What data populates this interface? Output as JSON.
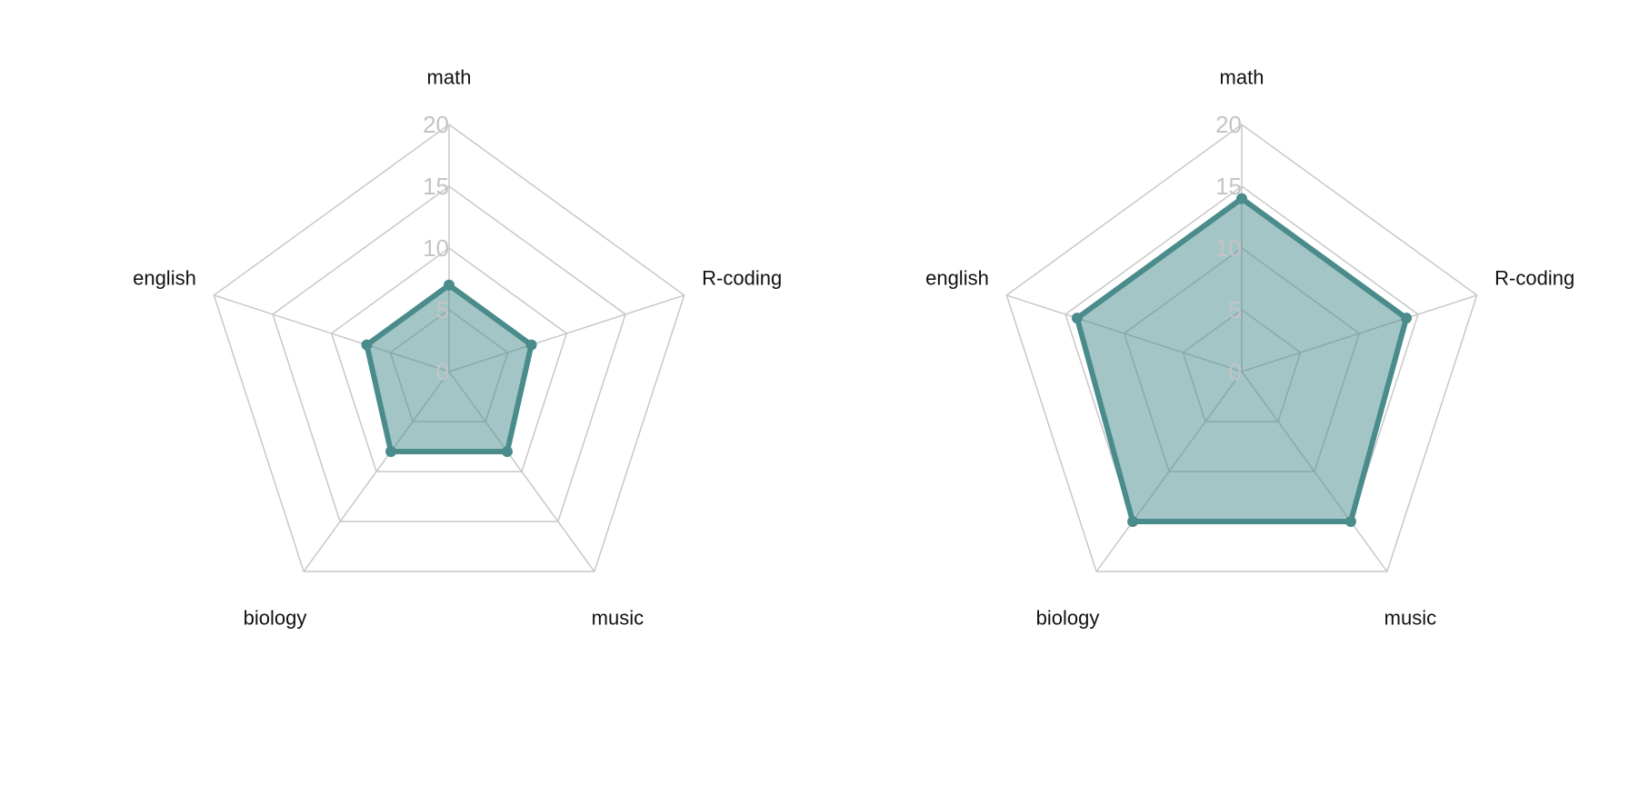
{
  "chart_data": [
    {
      "type": "radar",
      "axes": [
        "math",
        "R-coding",
        "music",
        "biology",
        "english"
      ],
      "rlim": [
        0,
        20
      ],
      "rticks": [
        0,
        5,
        10,
        15,
        20
      ],
      "series": [
        {
          "values": [
            7,
            7,
            8,
            8,
            7
          ]
        }
      ],
      "colors": {
        "line": "#4a8b8b",
        "fill": "#4a8b8b",
        "grid": "#c8c8c8",
        "tick": "#c4c4c4"
      }
    },
    {
      "type": "radar",
      "axes": [
        "math",
        "R-coding",
        "music",
        "biology",
        "english"
      ],
      "rlim": [
        0,
        20
      ],
      "rticks": [
        0,
        5,
        10,
        15,
        20
      ],
      "series": [
        {
          "values": [
            14,
            14,
            15,
            15,
            14
          ]
        }
      ],
      "colors": {
        "line": "#4a8b8b",
        "fill": "#4a8b8b",
        "grid": "#c8c8c8",
        "tick": "#c4c4c4"
      }
    }
  ]
}
